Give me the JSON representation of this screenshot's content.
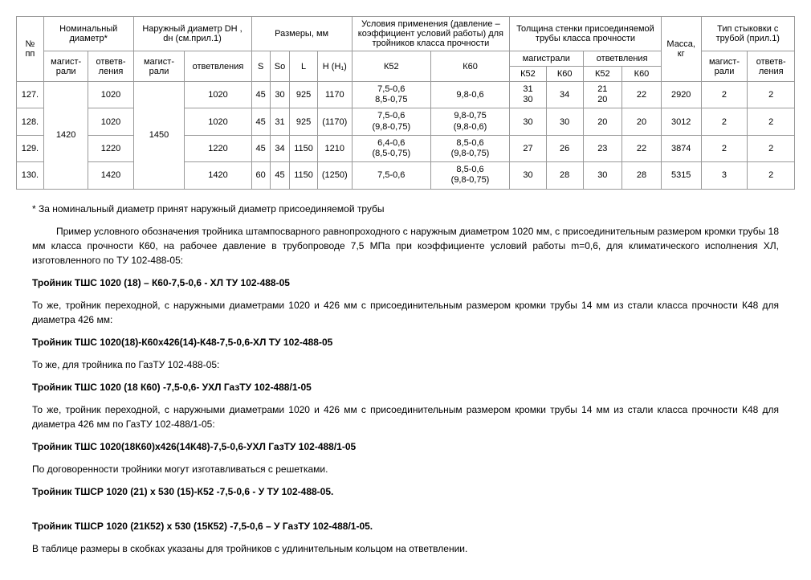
{
  "table": {
    "headers": {
      "num": "№ пп",
      "nomDiam": "Номинальный диаметр*",
      "outerDiam": "Наружный диаметр DН , dн (см.прил.1)",
      "dims": "Размеры, мм",
      "conditions": "Условия применения (давление –коэффициент условий работы)    для тройников класса прочности",
      "wallThick": "Толщина стенки присоединяемой трубы  класса прочности",
      "mass": "Масса, кг",
      "joint": "Тип стыковки с трубой (прил.1)",
      "mag": "магистрали",
      "otv": "ответвления",
      "magShort": "магист-рали",
      "otvShort": "ответв-ления",
      "S": "S",
      "So": "So",
      "L": "L",
      "H": "H (H₁)",
      "K52": "К52",
      "K60": "К60"
    },
    "rows": [
      {
        "n": "127.",
        "nomMag": "",
        "nomOtv": "1020",
        "odMag": "",
        "odOtv": "1020",
        "S": "45",
        "So": "30",
        "L": "925",
        "H": "1170",
        "c52": "7,5-0,6\n8,5-0,75",
        "c60": "9,8-0,6",
        "m52": "31\n30",
        "m60": "34",
        "o52": "21\n20",
        "o60": "22",
        "mass": "2920",
        "jm": "2",
        "jo": "2"
      },
      {
        "n": "128.",
        "nomMag": "",
        "nomOtv": "1020",
        "odMag": "",
        "odOtv": "1020",
        "S": "45",
        "So": "31",
        "L": "925",
        "H": "(1170)",
        "c52": "7,5-0,6\n(9,8-0,75)",
        "c60": "9,8-0,75\n(9,8-0,6)",
        "m52": "30",
        "m60": "30",
        "o52": "20",
        "o60": "20",
        "mass": "3012",
        "jm": "2",
        "jo": "2"
      },
      {
        "n": "129.",
        "nomMag": "1420",
        "nomOtv": "1220",
        "odMag": "1450",
        "odOtv": "1220",
        "S": "45",
        "So": "34",
        "L": "1150",
        "H": "1210",
        "c52": "6,4-0,6\n(8,5-0,75)",
        "c60": "8,5-0,6\n(9,8-0,75)",
        "m52": "27",
        "m60": "26",
        "o52": "23",
        "o60": "22",
        "mass": "3874",
        "jm": "2",
        "jo": "2"
      },
      {
        "n": "130.",
        "nomMag": "",
        "nomOtv": "1420",
        "odMag": "",
        "odOtv": "1420",
        "S": "60",
        "So": "45",
        "L": "1150",
        "H": "(1250)",
        "c52": "7,5-0,6",
        "c60": "8,5-0,6\n(9,8-0,75)",
        "m52": "30",
        "m60": "28",
        "o52": "30",
        "o60": "28",
        "mass": "5315",
        "jm": "3",
        "jo": "2"
      }
    ]
  },
  "footnote": "* За номинальный диаметр принят наружный диаметр присоединяемой трубы",
  "para1": "Пример условного обозначения тройника штампосварного равнопроходного с наружным диаметром 1020 мм, с присоединительным размером кромки трубы 18 мм класса прочности К60, на рабочее давление в трубопроводе 7,5 МПа при коэффициенте условий работы m=0,6, для климатического исполнения ХЛ, изготовленного по ТУ 102-488-05:",
  "code1": "Тройник ТШС 1020 (18) – К60-7,5-0,6 - ХЛ ТУ 102-488-05",
  "para2": "То же, тройник переходной, с наружными диаметрами 1020 и 426 мм с присоединительным размером кромки трубы 14 мм из стали класса прочности К48 для диаметра 426 мм:",
  "code2": "Тройник ТШС 1020(18)-К60х426(14)-К48-7,5-0,6-ХЛ ТУ 102-488-05",
  "para3": "То же, для тройника по ГазТУ 102-488-05:",
  "code3": "Тройник ТШС 1020 (18 К60) -7,5-0,6- УХЛ ГазТУ 102-488/1-05",
  "para4": "То же, тройник переходной, с наружными диаметрами 1020 и 426 мм с присоединительным размером кромки трубы 14 мм из стали класса прочности К48 для диаметра 426 мм по ГазТУ 102-488/1-05:",
  "code4": "Тройник ТШС 1020(18К60)х426(14К48)-7,5-0,6-УХЛ ГазТУ 102-488/1-05",
  "para5": "По договоренности тройники могут изготавливаться с решетками.",
  "code5": "Тройник ТШСР 1020 (21) х 530 (15)-К52 -7,5-0,6 - У  ТУ 102-488-05.",
  "code6": "Тройник ТШСР 1020 (21К52) х 530 (15К52) -7,5-0,6 – У ГазТУ 102-488/1-05.",
  "para6": "В таблице  размеры  в скобках указаны для тройников с удлинительным кольцом на ответвлении."
}
